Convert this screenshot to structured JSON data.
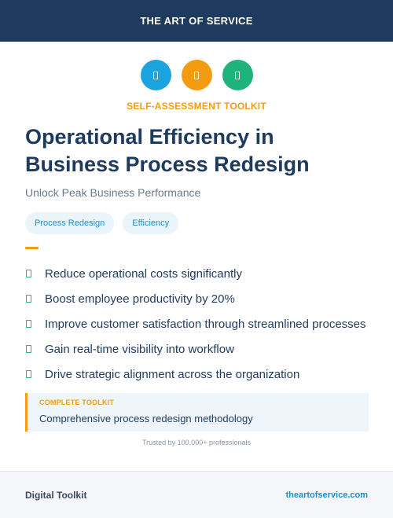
{
  "header": {
    "brand": "THE ART OF SERVICE"
  },
  "icons": [
    {
      "name": "document-icon",
      "color": "#1ba3e0"
    },
    {
      "name": "document-icon",
      "color": "#f39c12"
    },
    {
      "name": "document-icon",
      "color": "#1fb37c"
    }
  ],
  "kicker": {
    "text": "SELF-ASSESSMENT TOOLKIT",
    "color": "#f39c12"
  },
  "title": "Operational Efficiency in Business Process Redesign",
  "subtitle": "Unlock Peak Business Performance",
  "tags": [
    "Process Redesign",
    "Efficiency"
  ],
  "accent_color": "#f39c12",
  "benefits": [
    "Reduce operational costs significantly",
    "Boost employee productivity by 20%",
    "Improve customer satisfaction through streamlined processes",
    "Gain real-time visibility into workflow",
    "Drive strategic alignment across the organization"
  ],
  "callout": {
    "label": "COMPLETE TOOLKIT",
    "text": "Comprehensive process redesign methodology"
  },
  "trusted": "Trusted by 100,000+ professionals",
  "footer": {
    "left": "Digital Toolkit",
    "right": "theartofservice.com"
  }
}
